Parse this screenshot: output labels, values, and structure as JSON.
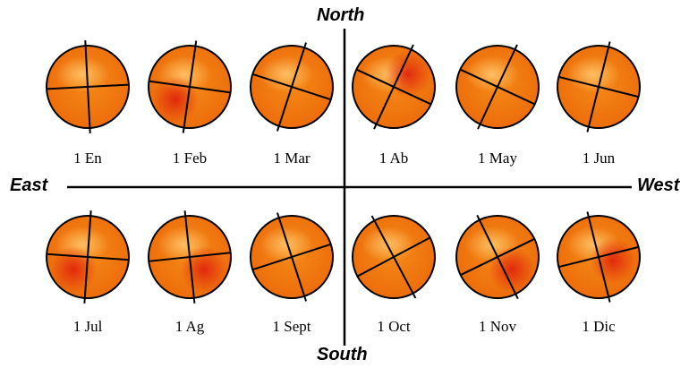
{
  "compass": {
    "north": "North",
    "south": "South",
    "east": "East",
    "west": "West"
  },
  "suns": [
    {
      "label": "1 En",
      "rotation_deg": -3,
      "hotspot": "none"
    },
    {
      "label": "1 Feb",
      "rotation_deg": 8,
      "hotspot": "lower-left"
    },
    {
      "label": "1 Mar",
      "rotation_deg": 18,
      "hotspot": "none"
    },
    {
      "label": "1 Ab",
      "rotation_deg": 25,
      "hotspot": "upper-right"
    },
    {
      "label": "1 May",
      "rotation_deg": 25,
      "hotspot": "none"
    },
    {
      "label": "1 Jun",
      "rotation_deg": 14,
      "hotspot": "none"
    },
    {
      "label": "1 Jul",
      "rotation_deg": 4,
      "hotspot": "lower-left"
    },
    {
      "label": "1 Ag",
      "rotation_deg": -6,
      "hotspot": "lower-right"
    },
    {
      "label": "1 Sept",
      "rotation_deg": -18,
      "hotspot": "none"
    },
    {
      "label": "1 Oct",
      "rotation_deg": -28,
      "hotspot": "none"
    },
    {
      "label": "1 Nov",
      "rotation_deg": -26,
      "hotspot": "lower-right"
    },
    {
      "label": "1 Dic",
      "rotation_deg": -14,
      "hotspot": "center-right"
    }
  ],
  "colors": {
    "sun_base": "#f07a0e",
    "sun_light": "#fbb040",
    "sun_hot": "#e0240c",
    "outline": "#000000"
  }
}
